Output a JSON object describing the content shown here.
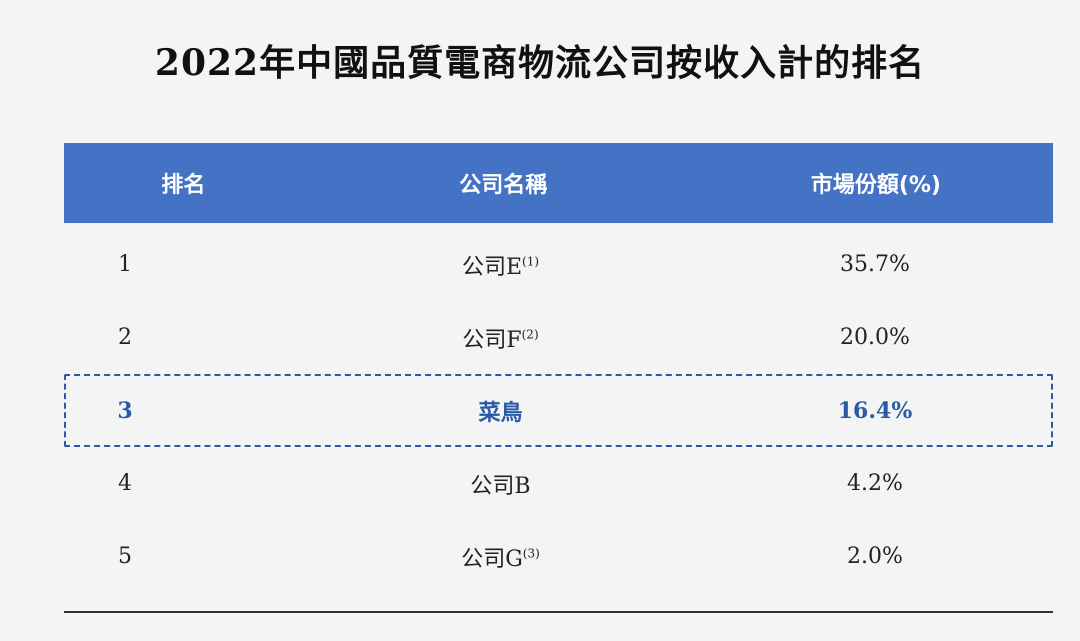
{
  "title": "2022年中國品質電商物流公司按收入計的排名",
  "headers": {
    "rank": "排名",
    "company": "公司名稱",
    "share": "市場份額(%)"
  },
  "rows": [
    {
      "rank": "1",
      "company": "公司E",
      "note": "(1)",
      "share": "35.7%"
    },
    {
      "rank": "2",
      "company": "公司F",
      "note": "(2)",
      "share": "20.0%"
    },
    {
      "rank": "3",
      "company": "菜鳥",
      "note": "",
      "share": "16.4%"
    },
    {
      "rank": "4",
      "company": "公司B",
      "note": "",
      "share": "4.2%"
    },
    {
      "rank": "5",
      "company": "公司G",
      "note": "(3)",
      "share": "2.0%"
    }
  ],
  "colors": {
    "header_bg": "#4472c4",
    "highlight": "#2a5aa6"
  }
}
